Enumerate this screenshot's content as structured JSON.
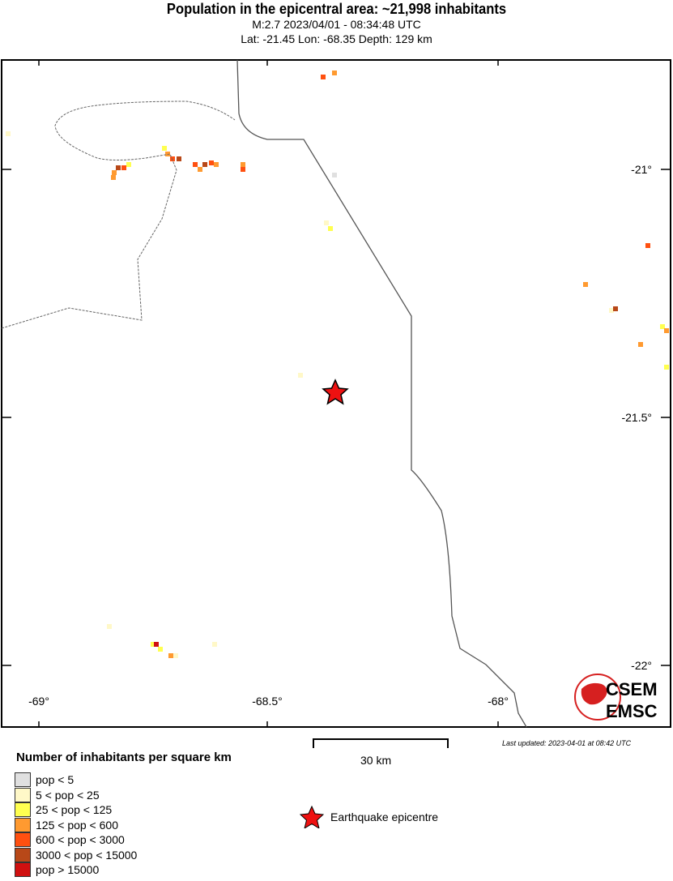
{
  "header": {
    "title": "Population in the epicentral area: ~21,998 inhabitants",
    "subtitle1": "M:2.7 2023/04/01 - 08:34:48 UTC",
    "subtitle2": "Lat: -21.45 Lon: -68.35 Depth: 129 km"
  },
  "map": {
    "lon_ticks": [
      "-69°",
      "-68.5°",
      "-68°"
    ],
    "lat_ticks": [
      "-21°",
      "-21.5°",
      "-22°"
    ],
    "epicentre": {
      "lat": -21.45,
      "lon": -68.35
    },
    "logo_text": [
      "CSEM",
      "EMSC"
    ]
  },
  "footer": {
    "last_updated": "Last updated: 2023-04-01 at 08:42 UTC",
    "scale_label": "30 km",
    "legend_title": "Number of inhabitants per square km",
    "legend": [
      {
        "label": "pop < 5",
        "color": "#e0e0e0"
      },
      {
        "label": "5 < pop < 25",
        "color": "#fff8c8"
      },
      {
        "label": "25 < pop < 125",
        "color": "#ffff50"
      },
      {
        "label": "125 < pop < 600",
        "color": "#ff9a30"
      },
      {
        "label": "600 < pop < 3000",
        "color": "#ff5010"
      },
      {
        "label": "3000 < pop < 15000",
        "color": "#b84818"
      },
      {
        "label": "pop > 15000",
        "color": "#d01010"
      }
    ],
    "epicentre_label": "Earthquake epicentre",
    "epicentre_color": "#ee1111"
  }
}
